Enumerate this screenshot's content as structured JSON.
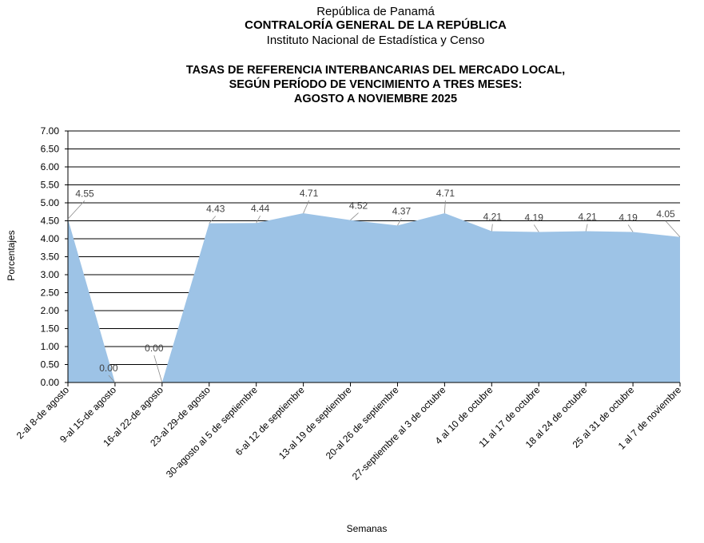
{
  "header": {
    "country": "República de Panamá",
    "institution": "CONTRALORÍA GENERAL DE LA REPÚBLICA",
    "institute": "Instituto  Nacional de Estadística y Censo"
  },
  "chart_data": {
    "type": "area",
    "title_lines": [
      "TASAS DE REFERENCIA INTERBANCARIAS DEL MERCADO LOCAL,",
      "SEGÚN PERÍODO DE VENCIMIENTO A TRES MESES:",
      "AGOSTO A NOVIEMBRE 2025"
    ],
    "xlabel": "Semanas",
    "ylabel": "Porcentajes",
    "ylim": [
      0,
      7
    ],
    "ytick_step": 0.5,
    "ytick_labels": [
      "0.00",
      "0.50",
      "1.00",
      "1.50",
      "2.00",
      "2.50",
      "3.00",
      "3.50",
      "4.00",
      "4.50",
      "5.00",
      "5.50",
      "6.00",
      "6.50",
      "7.00"
    ],
    "grid": true,
    "categories": [
      "2-al 8-de agosto",
      "9-al 15-de agosto",
      "16-al 22-de agosto",
      "23-al 29-de agosto",
      "30-agosto al 5 de septiembre",
      "6-al 12 de septiembre",
      "13-al 19 de septiembre",
      "20-al 26 de septiembre",
      "27-septiembre al 3 de octubre",
      "4 al 10 de octubre",
      "11 al 17 de octubre",
      "18 al 24 de octubre",
      "25 al 31 de octubre",
      "1 al 7 de noviembre"
    ],
    "values": [
      4.55,
      0.0,
      0.0,
      4.43,
      4.44,
      4.71,
      4.52,
      4.37,
      4.71,
      4.21,
      4.19,
      4.21,
      4.19,
      4.05
    ],
    "data_labels": [
      "4.55",
      "0.00",
      "0.00",
      "4.43",
      "4.44",
      "4.71",
      "4.52",
      "4.37",
      "4.71",
      "4.21",
      "4.19",
      "4.21",
      "4.19",
      "4.05"
    ],
    "fill_color": "#9dc3e6"
  }
}
